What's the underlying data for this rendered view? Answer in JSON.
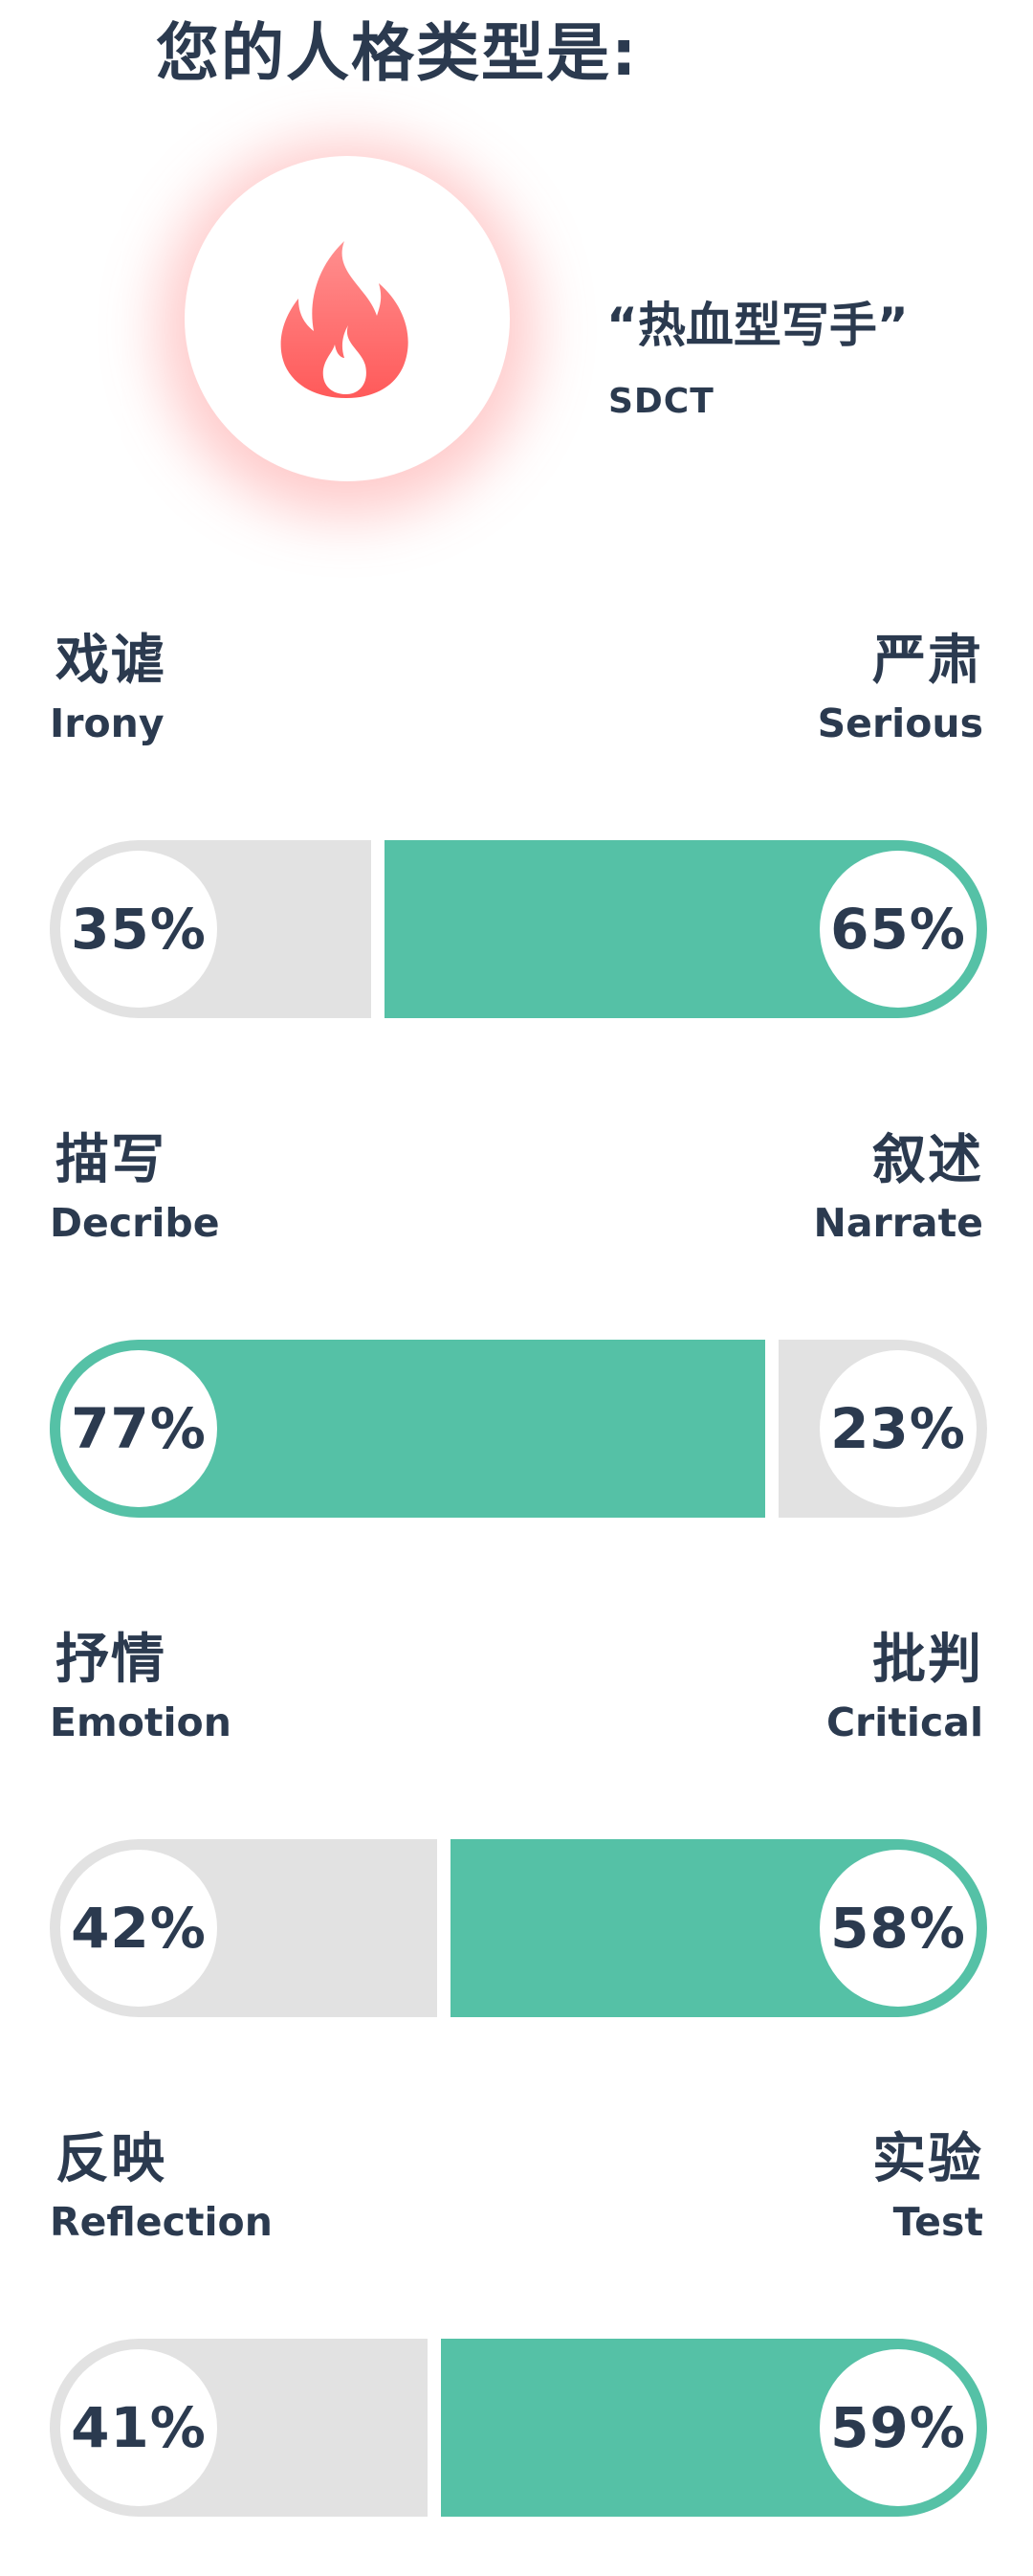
{
  "header": {
    "title": "您的人格类型是:"
  },
  "result": {
    "icon": "fire-icon",
    "type_name": "“热血型写手”",
    "type_code": "SDCT",
    "icon_color": "#ff6b6b"
  },
  "colors": {
    "accent": "#55c1a6",
    "track": "#e2e2e2",
    "text": "#2b3a4f"
  },
  "traits": [
    {
      "left_zh": "戏谑",
      "left_en": "Irony",
      "left_pct": "35%",
      "left_value": 35,
      "right_zh": "严肃",
      "right_en": "Serious",
      "right_pct": "65%",
      "right_value": 65,
      "dominant": "right"
    },
    {
      "left_zh": "描写",
      "left_en": "Decribe",
      "left_pct": "77%",
      "left_value": 77,
      "right_zh": "叙述",
      "right_en": "Narrate",
      "right_pct": "23%",
      "right_value": 23,
      "dominant": "left"
    },
    {
      "left_zh": "抒情",
      "left_en": "Emotion",
      "left_pct": "42%",
      "left_value": 42,
      "right_zh": "批判",
      "right_en": "Critical",
      "right_pct": "58%",
      "right_value": 58,
      "dominant": "right"
    },
    {
      "left_zh": "反映",
      "left_en": "Reflection",
      "left_pct": "41%",
      "left_value": 41,
      "right_zh": "实验",
      "right_en": "Test",
      "right_pct": "59%",
      "right_value": 59,
      "dominant": "right"
    }
  ]
}
